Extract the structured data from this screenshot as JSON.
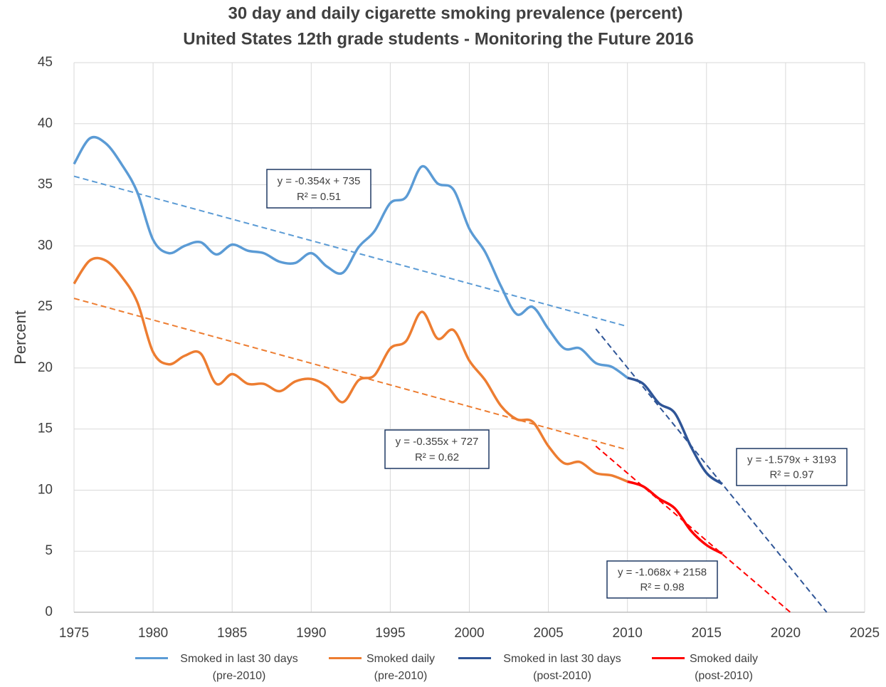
{
  "chart_data": {
    "type": "line",
    "title": "30 day and daily cigarette smoking prevalence (percent)",
    "subtitle": "United States 12th grade students - Monitoring the Future 2016",
    "ylabel": "Percent",
    "xlim": [
      1975,
      2025
    ],
    "xticks": [
      1975,
      1980,
      1985,
      1990,
      1995,
      2000,
      2005,
      2010,
      2015,
      2020,
      2025
    ],
    "ylim": [
      0,
      45
    ],
    "yticks": [
      0,
      5,
      10,
      15,
      20,
      25,
      30,
      35,
      40,
      45
    ],
    "grid": true,
    "legend": "bottom",
    "series": [
      {
        "name": "Smoked in last 30 days (pre-2010)",
        "color": "#5b9bd5",
        "x": [
          1975,
          1976,
          1977,
          1978,
          1979,
          1980,
          1981,
          1982,
          1983,
          1984,
          1985,
          1986,
          1987,
          1988,
          1989,
          1990,
          1991,
          1992,
          1993,
          1994,
          1995,
          1996,
          1997,
          1998,
          1999,
          2000,
          2001,
          2002,
          2003,
          2004,
          2005,
          2006,
          2007,
          2008,
          2009,
          2010
        ],
        "values": [
          36.7,
          38.8,
          38.4,
          36.7,
          34.4,
          30.5,
          29.4,
          30.0,
          30.3,
          29.3,
          30.1,
          29.6,
          29.4,
          28.7,
          28.6,
          29.4,
          28.3,
          27.8,
          29.9,
          31.2,
          33.5,
          34.0,
          36.5,
          35.1,
          34.6,
          31.4,
          29.5,
          26.7,
          24.4,
          25.0,
          23.2,
          21.6,
          21.6,
          20.4,
          20.1,
          19.2
        ]
      },
      {
        "name": "Smoked daily (pre-2010)",
        "color": "#ed7d31",
        "x": [
          1975,
          1976,
          1977,
          1978,
          1979,
          1980,
          1981,
          1982,
          1983,
          1984,
          1985,
          1986,
          1987,
          1988,
          1989,
          1990,
          1991,
          1992,
          1993,
          1994,
          1995,
          1996,
          1997,
          1998,
          1999,
          2000,
          2001,
          2002,
          2003,
          2004,
          2005,
          2006,
          2007,
          2008,
          2009,
          2010
        ],
        "values": [
          26.9,
          28.8,
          28.8,
          27.5,
          25.4,
          21.3,
          20.3,
          21.0,
          21.2,
          18.7,
          19.5,
          18.7,
          18.7,
          18.1,
          18.9,
          19.1,
          18.5,
          17.2,
          19.0,
          19.4,
          21.6,
          22.2,
          24.6,
          22.4,
          23.1,
          20.6,
          19.0,
          16.9,
          15.8,
          15.6,
          13.6,
          12.2,
          12.3,
          11.4,
          11.2,
          10.7
        ]
      },
      {
        "name": "Smoked in last 30 days (post-2010)",
        "color": "#2f5597",
        "x": [
          2010,
          2011,
          2012,
          2013,
          2014,
          2015,
          2016
        ],
        "values": [
          19.2,
          18.7,
          17.1,
          16.3,
          13.6,
          11.4,
          10.5
        ]
      },
      {
        "name": "Smoked daily (post-2010)",
        "color": "#ff0000",
        "x": [
          2010,
          2011,
          2012,
          2013,
          2014,
          2015,
          2016
        ],
        "values": [
          10.7,
          10.3,
          9.3,
          8.5,
          6.7,
          5.5,
          4.8
        ]
      }
    ],
    "trendlines": [
      {
        "color": "#5b9bd5",
        "x": [
          1975,
          2010
        ],
        "values": [
          35.7,
          23.4
        ]
      },
      {
        "color": "#ed7d31",
        "x": [
          1975,
          2010
        ],
        "values": [
          25.7,
          13.3
        ]
      },
      {
        "color": "#2f5597",
        "x": [
          2008,
          2022.6
        ],
        "values": [
          23.2,
          0
        ]
      },
      {
        "color": "#ff0000",
        "x": [
          2008,
          2020.3
        ],
        "values": [
          13.6,
          0
        ]
      }
    ],
    "annotations": [
      {
        "equation": "y = -0.354x + 735",
        "r2": "R² = 0.51"
      },
      {
        "equation": "y = -0.355x + 727",
        "r2": "R² = 0.62"
      },
      {
        "equation": "y = -1.579x + 3193",
        "r2": "R² = 0.97"
      },
      {
        "equation": "y = -1.068x + 2158",
        "r2": "R² = 0.98"
      }
    ]
  }
}
